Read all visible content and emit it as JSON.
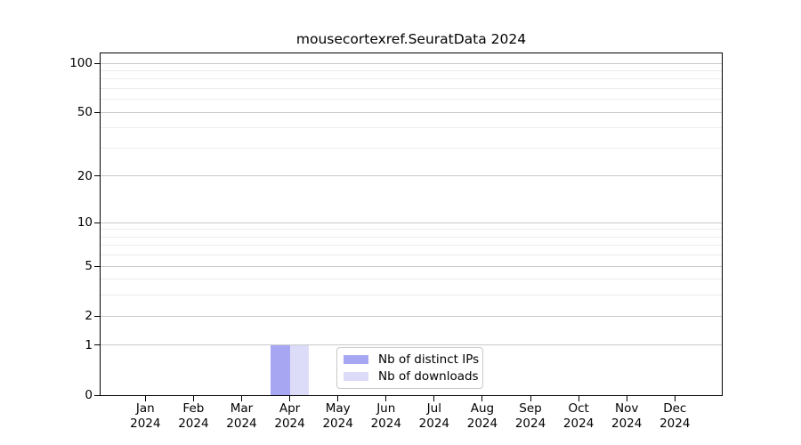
{
  "chart_data": {
    "type": "bar",
    "title": "mousecortexref.SeuratData 2024",
    "categories": [
      {
        "month": "Jan",
        "year": "2024"
      },
      {
        "month": "Feb",
        "year": "2024"
      },
      {
        "month": "Mar",
        "year": "2024"
      },
      {
        "month": "Apr",
        "year": "2024"
      },
      {
        "month": "May",
        "year": "2024"
      },
      {
        "month": "Jun",
        "year": "2024"
      },
      {
        "month": "Jul",
        "year": "2024"
      },
      {
        "month": "Aug",
        "year": "2024"
      },
      {
        "month": "Sep",
        "year": "2024"
      },
      {
        "month": "Oct",
        "year": "2024"
      },
      {
        "month": "Nov",
        "year": "2024"
      },
      {
        "month": "Dec",
        "year": "2024"
      }
    ],
    "series": [
      {
        "name": "Nb of distinct IPs",
        "color": "#a6a6f2",
        "values": [
          0,
          0,
          0,
          1,
          0,
          0,
          0,
          0,
          0,
          0,
          0,
          0
        ]
      },
      {
        "name": "Nb of downloads",
        "color": "#dcdcf8",
        "values": [
          0,
          0,
          0,
          1,
          0,
          0,
          0,
          0,
          0,
          0,
          0,
          0
        ]
      }
    ],
    "yscale": "log1p",
    "ylim": [
      0,
      110
    ],
    "yticks": [
      0,
      1,
      2,
      5,
      10,
      20,
      50,
      100
    ],
    "ytick_labels": [
      "0",
      "1",
      "2",
      "5",
      "10",
      "20",
      "50",
      "100"
    ],
    "yticks_minor": [
      3,
      4,
      6,
      7,
      8,
      9,
      30,
      40,
      60,
      70,
      80,
      90
    ],
    "xlabel": "",
    "ylabel": "",
    "grid": "horizontal",
    "legend_position": "inside-bottom-center",
    "colors": {
      "background": "#ffffff",
      "axis": "#000000",
      "grid_major": "#c9c9c9",
      "grid_minor": "#ececec",
      "legend_border": "#c9c9c9"
    }
  }
}
